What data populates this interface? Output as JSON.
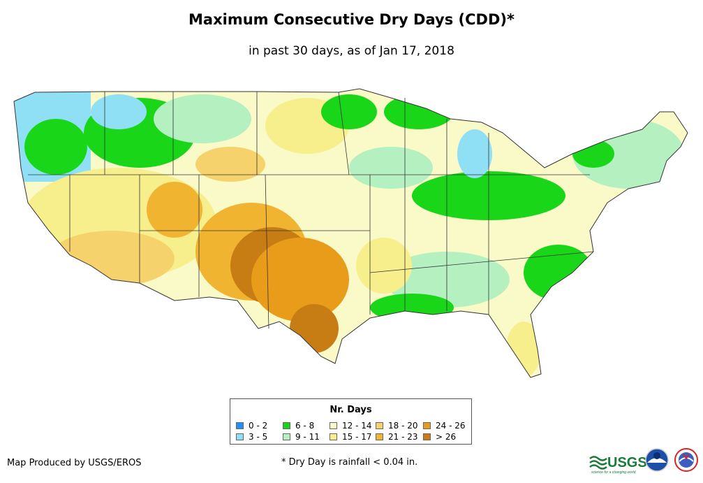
{
  "title": "Maximum Consecutive Dry Days (CDD)*",
  "subtitle": "in past 30 days, as of Jan 17, 2018",
  "legend": {
    "title": "Nr. Days",
    "items": [
      {
        "label": "0 - 2",
        "color": "#1e90ff"
      },
      {
        "label": "3 - 5",
        "color": "#8fe0f5"
      },
      {
        "label": "6 - 8",
        "color": "#19d619"
      },
      {
        "label": "9 - 11",
        "color": "#b4f0c0"
      },
      {
        "label": "12 - 14",
        "color": "#fafac8"
      },
      {
        "label": "15 - 17",
        "color": "#f7ee8c"
      },
      {
        "label": "18 - 20",
        "color": "#f5d26b"
      },
      {
        "label": "21 - 23",
        "color": "#f0b430"
      },
      {
        "label": "24 - 26",
        "color": "#e89c1a"
      },
      {
        "label": "> 26",
        "color": "#c87d14"
      }
    ]
  },
  "footer": {
    "credit": "Map Produced by USGS/EROS",
    "footnote": "* Dry Day is rainfall < 0.04 in.",
    "usgs_logo_text": "USGS",
    "usgs_tagline": "science for a changing world"
  }
}
